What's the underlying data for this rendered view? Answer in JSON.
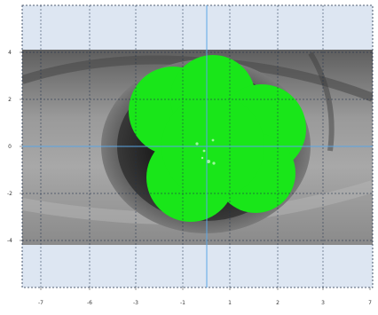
{
  "plot": {
    "x_ticks": [
      "-7",
      "-6",
      "-3",
      "-1",
      "1",
      "2",
      "3",
      "7"
    ],
    "y_ticks": [
      "4",
      "2",
      "0",
      "-2",
      "-4"
    ],
    "background_color": "#dde6f2",
    "grid_color": "#1f2f4a",
    "crosshair_color": "#5aa6e6",
    "overlay_color": "#19e619"
  },
  "image": {
    "icon": "eye-photo"
  }
}
